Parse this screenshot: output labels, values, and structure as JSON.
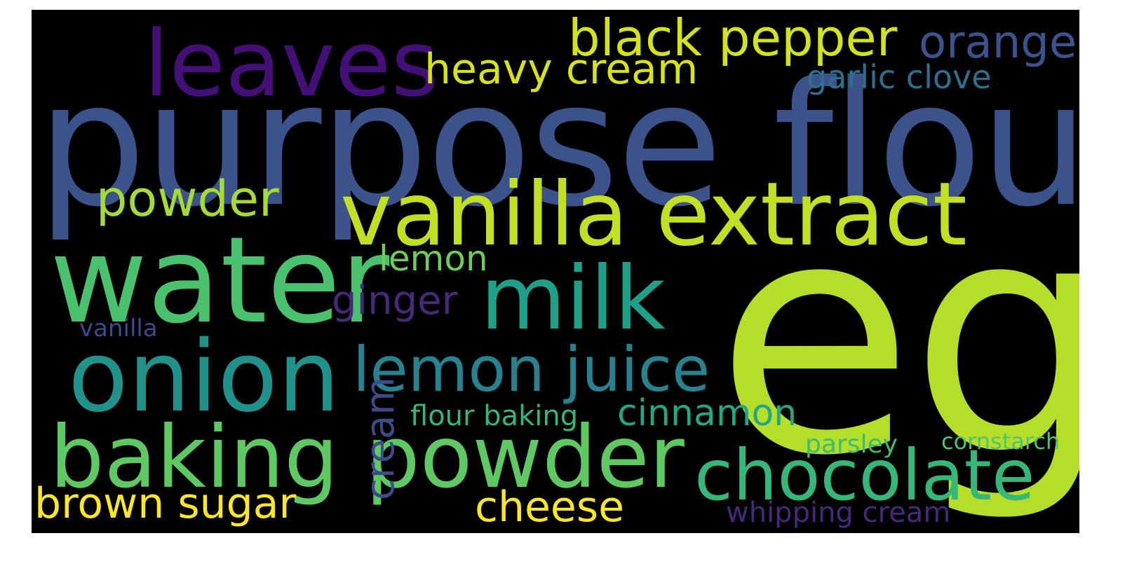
{
  "words": [
    {
      "text": "egg",
      "color": "#b5de2b"
    },
    {
      "text": "purpose flour",
      "color": "#3b528b"
    },
    {
      "text": "water",
      "color": "#4ac16d"
    },
    {
      "text": "vanilla extract",
      "color": "#c2df23"
    },
    {
      "text": "leaves",
      "color": "#440f76"
    },
    {
      "text": "onion",
      "color": "#21918c"
    },
    {
      "text": "baking powder",
      "color": "#5ec962"
    },
    {
      "text": "milk",
      "color": "#1fa088"
    },
    {
      "text": "black pepper",
      "color": "#d2e21b"
    },
    {
      "text": "chocolate",
      "color": "#35b779"
    },
    {
      "text": "lemon juice",
      "color": "#26828e"
    },
    {
      "text": "heavy cream",
      "color": "#d8e219"
    },
    {
      "text": "orange",
      "color": "#3b528b"
    },
    {
      "text": "powder",
      "color": "#a5db36"
    },
    {
      "text": "brown sugar",
      "color": "#fde725"
    },
    {
      "text": "cheese",
      "color": "#fde725"
    },
    {
      "text": "cinnamon",
      "color": "#22a884"
    },
    {
      "text": "cream",
      "color": "#3e4a89"
    },
    {
      "text": "ginger",
      "color": "#482878"
    },
    {
      "text": "lemon",
      "color": "#6ccd5a"
    },
    {
      "text": "garlic clove",
      "color": "#2e6f8e"
    },
    {
      "text": "whipping cream",
      "color": "#482878"
    },
    {
      "text": "flour baking",
      "color": "#35b779"
    },
    {
      "text": "vanilla",
      "color": "#3e4a89"
    },
    {
      "text": "parsley",
      "color": "#3dbc74"
    },
    {
      "text": "cornstarch",
      "color": "#52c569"
    }
  ]
}
